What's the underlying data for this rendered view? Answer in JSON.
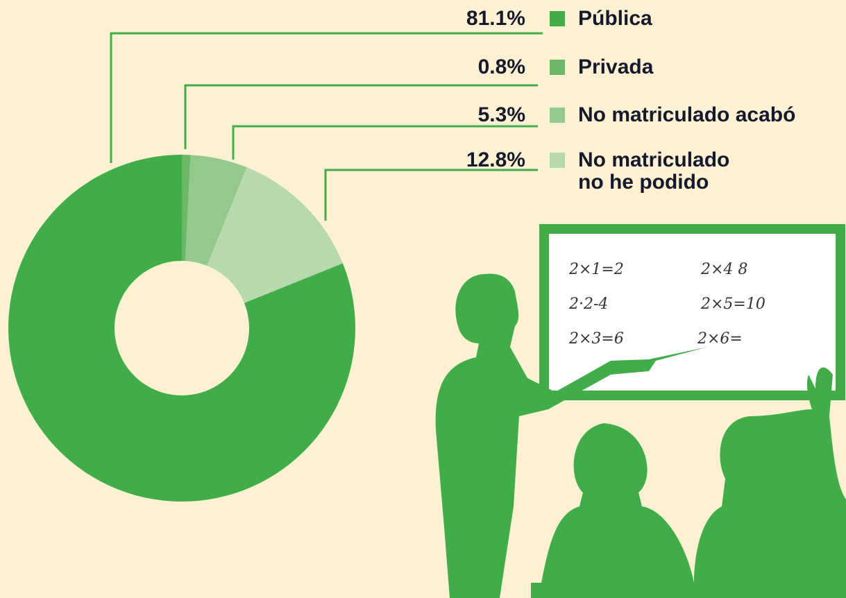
{
  "chart_data": {
    "type": "donut",
    "categories": [
      "Pública",
      "Privada",
      "No matriculado acabó",
      "No matriculado\nno he podido"
    ],
    "values": [
      81.1,
      0.8,
      5.3,
      12.8
    ],
    "value_labels": [
      "81.1%",
      "0.8%",
      "5.3%",
      "12.8%"
    ],
    "colors": [
      "#41ad49",
      "#6cb866",
      "#93c98a",
      "#b7d9ae"
    ]
  },
  "illustration": {
    "board_text": [
      "2×1=2",
      "2×4  8",
      "2·2-4",
      "2×5=10",
      "2×3=6",
      "2×6="
    ]
  }
}
